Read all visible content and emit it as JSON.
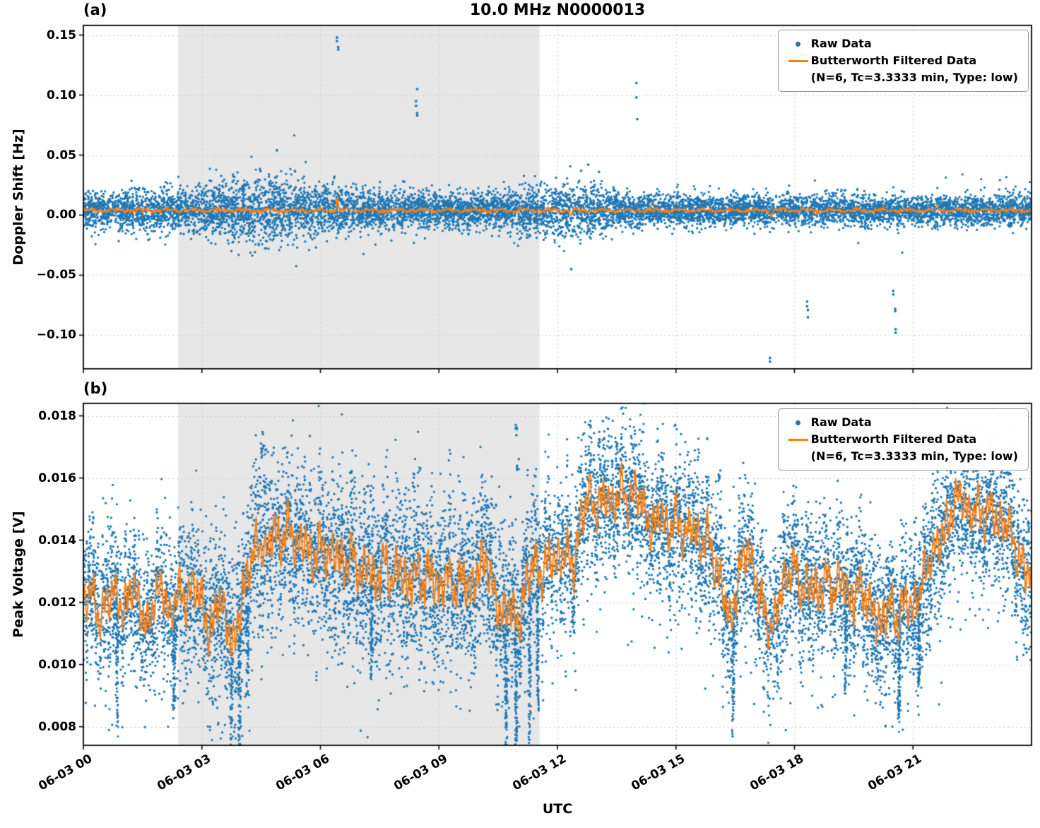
{
  "title": "10.0 MHz N0000013",
  "xlabel": "UTC",
  "legend": {
    "raw": "Raw Data",
    "filtered": "Butterworth Filtered Data",
    "filtered_params": "(N=6, Tc=3.3333 min, Type: low)"
  },
  "colors": {
    "raw": "#1f77b4",
    "filtered": "#ff7f0e",
    "shade": "#e7e7e7",
    "grid": "#c8c8c8",
    "axis": "#000000"
  },
  "chart_data": {
    "type": "scatter",
    "seed": 42,
    "x_unit": "hours since 06-03 00:00 UTC",
    "x_range": [
      0,
      24
    ],
    "x_ticks": [
      {
        "hour": 0,
        "label": "06-03 00"
      },
      {
        "hour": 3,
        "label": "06-03 03"
      },
      {
        "hour": 6,
        "label": "06-03 06"
      },
      {
        "hour": 9,
        "label": "06-03 09"
      },
      {
        "hour": 12,
        "label": "06-03 12"
      },
      {
        "hour": 15,
        "label": "06-03 15"
      },
      {
        "hour": 18,
        "label": "06-03 18"
      },
      {
        "hour": 21,
        "label": "06-03 21"
      }
    ],
    "shaded_region": [
      2.4,
      11.55
    ],
    "panels": [
      {
        "id": "a",
        "label": "(a)",
        "ylabel": "Doppler Shift [Hz]",
        "ylim": [
          -0.128,
          0.158
        ],
        "yticks": [
          {
            "v": 0.15,
            "label": "0.15"
          },
          {
            "v": 0.1,
            "label": "0.10"
          },
          {
            "v": 0.05,
            "label": "0.05"
          },
          {
            "v": 0.0,
            "label": "0.00"
          },
          {
            "v": -0.05,
            "label": "−0.05"
          },
          {
            "v": -0.1,
            "label": "−0.10"
          }
        ],
        "raw": {
          "n": 9500,
          "center": 0.004,
          "sigma_base": 0.0075,
          "sigma_bumps": [
            [
              4.6,
              1.4,
              0.006
            ],
            [
              12.2,
              0.8,
              0.0035
            ]
          ],
          "outliers": [
            [
              4.9,
              0.054
            ],
            [
              6.42,
              0.148
            ],
            [
              6.42,
              0.145
            ],
            [
              6.45,
              0.14
            ],
            [
              6.45,
              0.138
            ],
            [
              8.45,
              0.105
            ],
            [
              8.42,
              0.095
            ],
            [
              8.42,
              0.091
            ],
            [
              8.45,
              0.085
            ],
            [
              8.45,
              0.083
            ],
            [
              12.35,
              -0.045
            ],
            [
              12.6,
              0.037
            ],
            [
              12.78,
              0.042
            ],
            [
              13.05,
              0.036
            ],
            [
              14.0,
              0.11
            ],
            [
              14.0,
              0.098
            ],
            [
              14.02,
              0.08
            ],
            [
              17.38,
              -0.119
            ],
            [
              17.38,
              -0.122
            ],
            [
              18.32,
              -0.072
            ],
            [
              18.32,
              -0.076
            ],
            [
              18.34,
              -0.079
            ],
            [
              18.34,
              -0.085
            ],
            [
              20.5,
              -0.063
            ],
            [
              20.5,
              -0.066
            ],
            [
              20.55,
              -0.078
            ],
            [
              20.55,
              -0.08
            ],
            [
              20.56,
              -0.095
            ],
            [
              20.56,
              -0.098
            ]
          ]
        },
        "filtered": {
          "base": 0.004,
          "spikes": [
            [
              6.43,
              0.011,
              0.02
            ],
            [
              12.35,
              -0.004,
              0.03
            ],
            [
              17.4,
              -0.004,
              0.03
            ],
            [
              21.6,
              0.004,
              0.02
            ]
          ]
        }
      },
      {
        "id": "b",
        "label": "(b)",
        "ylabel": "Peak Voltage [V]",
        "ylim": [
          0.0074,
          0.0184
        ],
        "yticks": [
          {
            "v": 0.018,
            "label": "0.018"
          },
          {
            "v": 0.016,
            "label": "0.016"
          },
          {
            "v": 0.014,
            "label": "0.014"
          },
          {
            "v": 0.012,
            "label": "0.012"
          },
          {
            "v": 0.01,
            "label": "0.010"
          },
          {
            "v": 0.008,
            "label": "0.008"
          }
        ],
        "filtered": {
          "keypoints": [
            [
              0.0,
              0.0118
            ],
            [
              0.2,
              0.0126
            ],
            [
              0.4,
              0.0113
            ],
            [
              0.6,
              0.0121
            ],
            [
              0.8,
              0.0124
            ],
            [
              1.0,
              0.0116
            ],
            [
              1.2,
              0.0126
            ],
            [
              1.4,
              0.012
            ],
            [
              1.6,
              0.0112
            ],
            [
              1.8,
              0.012
            ],
            [
              2.0,
              0.0126
            ],
            [
              2.2,
              0.0114
            ],
            [
              2.4,
              0.0125
            ],
            [
              2.6,
              0.012
            ],
            [
              2.8,
              0.0126
            ],
            [
              3.0,
              0.0121
            ],
            [
              3.2,
              0.0108
            ],
            [
              3.4,
              0.0122
            ],
            [
              3.6,
              0.0115
            ],
            [
              3.8,
              0.0105
            ],
            [
              4.0,
              0.012
            ],
            [
              4.2,
              0.0132
            ],
            [
              4.4,
              0.014
            ],
            [
              4.6,
              0.0135
            ],
            [
              4.8,
              0.0144
            ],
            [
              5.0,
              0.0138
            ],
            [
              5.2,
              0.0146
            ],
            [
              5.4,
              0.0136
            ],
            [
              5.6,
              0.0142
            ],
            [
              5.8,
              0.0132
            ],
            [
              6.0,
              0.014
            ],
            [
              6.2,
              0.0133
            ],
            [
              6.4,
              0.0138
            ],
            [
              6.6,
              0.013
            ],
            [
              6.8,
              0.0137
            ],
            [
              7.0,
              0.0127
            ],
            [
              7.2,
              0.0134
            ],
            [
              7.4,
              0.0124
            ],
            [
              7.6,
              0.0135
            ],
            [
              7.8,
              0.0126
            ],
            [
              8.0,
              0.0133
            ],
            [
              8.2,
              0.0124
            ],
            [
              8.4,
              0.0131
            ],
            [
              8.6,
              0.0125
            ],
            [
              8.8,
              0.0132
            ],
            [
              9.0,
              0.0122
            ],
            [
              9.2,
              0.013
            ],
            [
              9.4,
              0.0123
            ],
            [
              9.6,
              0.0129
            ],
            [
              9.8,
              0.0122
            ],
            [
              10.0,
              0.0131
            ],
            [
              10.2,
              0.0134
            ],
            [
              10.4,
              0.0122
            ],
            [
              10.6,
              0.0115
            ],
            [
              10.8,
              0.012
            ],
            [
              11.0,
              0.0112
            ],
            [
              11.2,
              0.0125
            ],
            [
              11.4,
              0.0134
            ],
            [
              11.6,
              0.0128
            ],
            [
              11.8,
              0.0136
            ],
            [
              12.0,
              0.0132
            ],
            [
              12.2,
              0.0138
            ],
            [
              12.4,
              0.013
            ],
            [
              12.6,
              0.0147
            ],
            [
              12.8,
              0.0155
            ],
            [
              13.0,
              0.0149
            ],
            [
              13.2,
              0.0156
            ],
            [
              13.4,
              0.0149
            ],
            [
              13.6,
              0.0158
            ],
            [
              13.8,
              0.0151
            ],
            [
              14.0,
              0.0157
            ],
            [
              14.2,
              0.0149
            ],
            [
              14.4,
              0.0143
            ],
            [
              14.6,
              0.015
            ],
            [
              14.8,
              0.0141
            ],
            [
              15.0,
              0.0149
            ],
            [
              15.2,
              0.014
            ],
            [
              15.4,
              0.0147
            ],
            [
              15.6,
              0.0137
            ],
            [
              15.8,
              0.0143
            ],
            [
              16.0,
              0.0131
            ],
            [
              16.2,
              0.0124
            ],
            [
              16.4,
              0.0113
            ],
            [
              16.6,
              0.013
            ],
            [
              16.8,
              0.0138
            ],
            [
              17.0,
              0.0128
            ],
            [
              17.2,
              0.012
            ],
            [
              17.4,
              0.011
            ],
            [
              17.6,
              0.0121
            ],
            [
              17.8,
              0.0128
            ],
            [
              18.0,
              0.0133
            ],
            [
              18.2,
              0.0122
            ],
            [
              18.4,
              0.0128
            ],
            [
              18.6,
              0.0121
            ],
            [
              18.8,
              0.0129
            ],
            [
              19.0,
              0.0123
            ],
            [
              19.2,
              0.0129
            ],
            [
              19.4,
              0.0119
            ],
            [
              19.6,
              0.0126
            ],
            [
              19.8,
              0.0121
            ],
            [
              20.0,
              0.0117
            ],
            [
              20.2,
              0.0112
            ],
            [
              20.4,
              0.0121
            ],
            [
              20.6,
              0.0112
            ],
            [
              20.8,
              0.0122
            ],
            [
              21.0,
              0.0117
            ],
            [
              21.2,
              0.0126
            ],
            [
              21.4,
              0.0133
            ],
            [
              21.6,
              0.0138
            ],
            [
              21.8,
              0.0143
            ],
            [
              22.0,
              0.015
            ],
            [
              22.2,
              0.0156
            ],
            [
              22.4,
              0.0147
            ],
            [
              22.6,
              0.0152
            ],
            [
              22.8,
              0.0146
            ],
            [
              23.0,
              0.0151
            ],
            [
              23.2,
              0.0143
            ],
            [
              23.4,
              0.0147
            ],
            [
              23.6,
              0.0136
            ],
            [
              23.8,
              0.0131
            ],
            [
              24.0,
              0.0129
            ]
          ]
        },
        "raw": {
          "n": 13000,
          "sigma_shaded": 0.0013,
          "sigma_rest": 0.0011,
          "streaks": [
            [
              0.85,
              0.004
            ],
            [
              2.3,
              0.0035
            ],
            [
              3.75,
              0.0045
            ],
            [
              3.95,
              0.0048
            ],
            [
              4.15,
              0.0042
            ],
            [
              7.3,
              0.003
            ],
            [
              10.7,
              0.005
            ],
            [
              10.95,
              0.0045
            ],
            [
              11.3,
              0.0048
            ],
            [
              11.5,
              0.0042
            ],
            [
              16.45,
              0.0035
            ],
            [
              19.3,
              0.003
            ],
            [
              20.65,
              0.003
            ],
            [
              21.15,
              0.0032
            ]
          ],
          "high_outliers": [
            [
              4.55,
              0.0175
            ],
            [
              4.5,
              0.0172
            ],
            [
              8.35,
              0.0163
            ],
            [
              10.95,
              0.0179
            ],
            [
              11.0,
              0.0168
            ],
            [
              13.05,
              0.0175
            ],
            [
              13.5,
              0.0172
            ],
            [
              16.1,
              0.0165
            ],
            [
              22.3,
              0.0168
            ]
          ]
        }
      }
    ]
  }
}
